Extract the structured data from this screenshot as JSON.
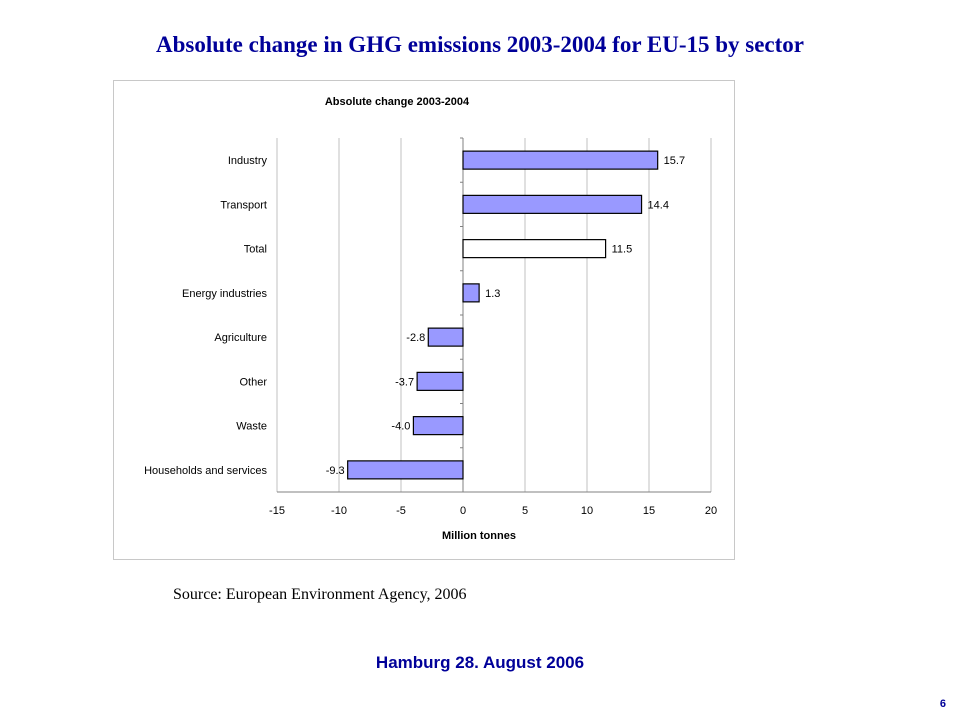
{
  "slide": {
    "title": "Absolute change in GHG emissions 2003-2004 for EU-15 by sector",
    "source": "Source: European Environment Agency, 2006",
    "footer": "Hamburg 28. August 2006",
    "page_number": "6"
  },
  "colors": {
    "title": "#000099",
    "bar_fill": "#9999ff",
    "total_bar_fill": "#ffffff",
    "bar_stroke": "#000000",
    "gridline": "#c0c0c0"
  },
  "chart_data": {
    "type": "bar",
    "orientation": "horizontal",
    "title": "Absolute change 2003-2004",
    "xlabel": "Million tonnes",
    "ylabel": "",
    "xlim": [
      -15,
      20
    ],
    "xticks": [
      -15,
      -10,
      -5,
      0,
      5,
      10,
      15,
      20
    ],
    "grid": true,
    "legend": "none",
    "categories": [
      "Industry",
      "Transport",
      "Total",
      "Energy industries",
      "Agriculture",
      "Other",
      "Waste",
      "Households and services"
    ],
    "values": [
      15.7,
      14.4,
      11.5,
      1.3,
      -2.8,
      -3.7,
      -4.0,
      -9.3
    ],
    "value_labels": [
      "15.7",
      "14.4",
      "11.5",
      "1.3",
      "-2.8",
      "-3.7",
      "-4.0",
      "-9.3"
    ]
  }
}
